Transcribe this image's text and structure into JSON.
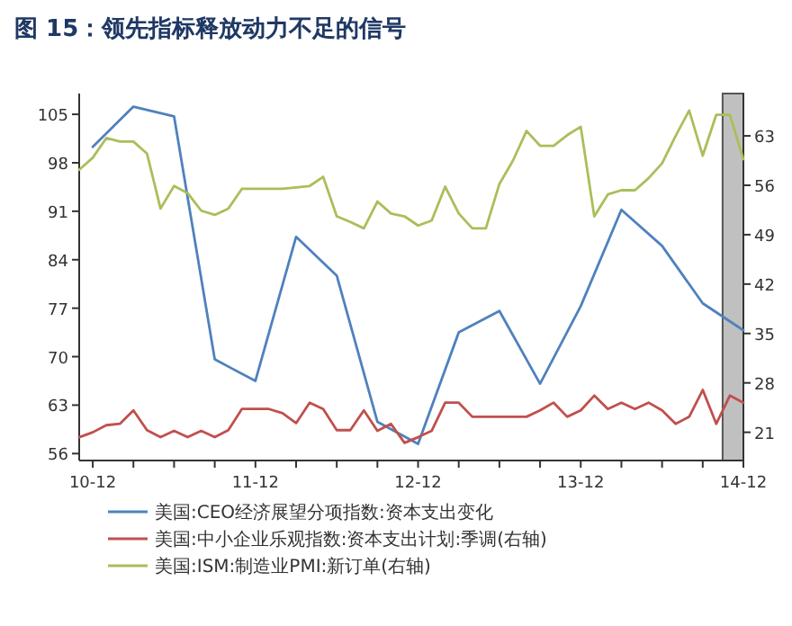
{
  "chart_data": {
    "type": "line",
    "title": "图 15：领先指标释放动力不足的信号",
    "x": [
      "2010-11",
      "2010-12",
      "2011-01",
      "2011-02",
      "2011-03",
      "2011-04",
      "2011-05",
      "2011-06",
      "2011-07",
      "2011-08",
      "2011-09",
      "2011-10",
      "2011-11",
      "2011-12",
      "2012-01",
      "2012-02",
      "2012-03",
      "2012-04",
      "2012-05",
      "2012-06",
      "2012-07",
      "2012-08",
      "2012-09",
      "2012-10",
      "2012-11",
      "2012-12",
      "2013-01",
      "2013-02",
      "2013-03",
      "2013-04",
      "2013-05",
      "2013-06",
      "2013-07",
      "2013-08",
      "2013-09",
      "2013-10",
      "2013-11",
      "2013-12",
      "2014-01",
      "2014-02",
      "2014-03",
      "2014-04",
      "2014-05",
      "2014-06",
      "2014-07",
      "2014-08",
      "2014-09",
      "2014-10",
      "2014-11",
      "2014-12"
    ],
    "series": [
      {
        "name": "美国:CEO经济展望分项指数:资本支出变化",
        "color": "#4f81bd",
        "x": [
          "2010-12",
          "2011-03",
          "2011-06",
          "2011-09",
          "2011-12",
          "2012-03",
          "2012-06",
          "2012-09",
          "2012-12",
          "2013-03",
          "2013-06",
          "2013-09",
          "2013-12",
          "2014-03",
          "2014-06",
          "2014-09",
          "2014-12"
        ],
        "values": [
          100.3,
          106.1,
          104.7,
          69.6,
          66.5,
          87.3,
          81.7,
          60.6,
          57.4,
          73.5,
          76.6,
          66.1,
          77.3,
          91.2,
          86.0,
          77.7,
          73.8
        ]
      },
      {
        "name": "美国:中小企业乐观指数:资本支出计划:季调(右轴)",
        "color": "#c0504d",
        "axis": "y2",
        "values": [
          20.3,
          21.0,
          22.0,
          22.2,
          24.1,
          21.3,
          20.3,
          21.2,
          20.3,
          21.2,
          20.3,
          21.3,
          24.3,
          24.3,
          24.3,
          23.7,
          22.3,
          25.2,
          24.3,
          21.3,
          21.3,
          24.1,
          21.2,
          22.2,
          19.5,
          20.3,
          21.2,
          25.2,
          25.2,
          23.2,
          23.2,
          23.2,
          23.2,
          23.2,
          24.1,
          25.2,
          23.2,
          24.1,
          26.2,
          24.3,
          25.2,
          24.3,
          25.2,
          24.1,
          22.2,
          23.2,
          27.0,
          22.2,
          26.2,
          25.2
        ]
      },
      {
        "name": "美国:ISM:制造业PMI:新订单(右轴)",
        "color": "#a9bf5a",
        "axis": "y2",
        "values": [
          58.2,
          59.9,
          62.7,
          62.2,
          62.2,
          60.5,
          52.7,
          55.9,
          54.9,
          52.4,
          51.8,
          52.7,
          55.5,
          55.5,
          55.5,
          55.5,
          55.7,
          55.9,
          57.2,
          51.6,
          50.8,
          49.9,
          53.7,
          52.0,
          51.6,
          50.3,
          51.0,
          55.8,
          52.0,
          49.9,
          49.9,
          56.2,
          59.5,
          63.7,
          61.6,
          61.6,
          63.1,
          64.3,
          51.6,
          54.7,
          55.3,
          55.3,
          57.0,
          59.1,
          63.0,
          66.6,
          60.2,
          66.0,
          66.0,
          59.7
        ]
      }
    ],
    "xlim": [
      "2010-11",
      "2014-12"
    ],
    "xticks": [
      {
        "value": "2010-12",
        "label": "10-12"
      },
      {
        "value": "2011-03",
        "label": null
      },
      {
        "value": "2011-06",
        "label": null
      },
      {
        "value": "2011-09",
        "label": null
      },
      {
        "value": "2011-12",
        "label": "11-12"
      },
      {
        "value": "2012-03",
        "label": null
      },
      {
        "value": "2012-06",
        "label": null
      },
      {
        "value": "2012-09",
        "label": null
      },
      {
        "value": "2012-12",
        "label": "12-12"
      },
      {
        "value": "2013-03",
        "label": null
      },
      {
        "value": "2013-06",
        "label": null
      },
      {
        "value": "2013-09",
        "label": null
      },
      {
        "value": "2013-12",
        "label": "13-12"
      },
      {
        "value": "2014-03",
        "label": null
      },
      {
        "value": "2014-06",
        "label": null
      },
      {
        "value": "2014-09",
        "label": null
      },
      {
        "value": "2014-12",
        "label": "14-12"
      }
    ],
    "ylim": [
      55,
      108
    ],
    "yticks": [
      56,
      63,
      70,
      77,
      84,
      91,
      98,
      105
    ],
    "y2lim": [
      17,
      69
    ],
    "y2ticks": [
      21,
      28,
      35,
      42,
      49,
      56,
      63
    ],
    "bands": [
      {
        "axis": "x",
        "from": "2014-10-15",
        "to": "2014-12",
        "color": "#c0c0c0"
      }
    ],
    "legend": "bottom",
    "grid": false,
    "marker": "none",
    "line_style": "solid"
  }
}
